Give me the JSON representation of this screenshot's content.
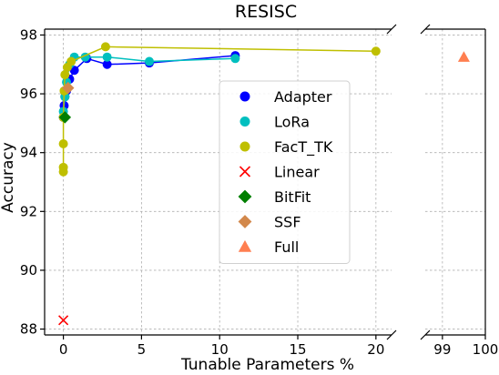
{
  "chart_data": {
    "type": "scatter",
    "title": "RESISC",
    "xlabel": "Tunable Parameters %",
    "ylabel": "Accuracy",
    "ylim": [
      87.8,
      98.2
    ],
    "yticks": [
      88,
      90,
      92,
      94,
      96,
      98
    ],
    "panels": [
      {
        "xlim": [
          -1.2,
          21
        ],
        "xticks": [
          0,
          5,
          10,
          15,
          20
        ]
      },
      {
        "xlim": [
          98.6,
          100
        ],
        "xticks": [
          99,
          100
        ]
      }
    ],
    "grid": true,
    "axis_break": true,
    "legend_position": "center-right",
    "series": [
      {
        "name": "Adapter",
        "marker": "circle",
        "color": "#0000ff",
        "line": true,
        "points": [
          [
            0.0,
            95.2
          ],
          [
            0.05,
            95.6
          ],
          [
            0.1,
            95.9
          ],
          [
            0.2,
            96.1
          ],
          [
            0.4,
            96.5
          ],
          [
            0.7,
            96.8
          ],
          [
            1.5,
            97.2
          ],
          [
            2.8,
            97.0
          ],
          [
            5.5,
            97.05
          ],
          [
            11.0,
            97.3
          ]
        ]
      },
      {
        "name": "LoRa",
        "marker": "circle",
        "color": "#00bfbf",
        "line": true,
        "points": [
          [
            0.0,
            95.4
          ],
          [
            0.1,
            95.9
          ],
          [
            0.2,
            96.4
          ],
          [
            0.4,
            97.0
          ],
          [
            0.7,
            97.25
          ],
          [
            1.4,
            97.25
          ],
          [
            2.8,
            97.25
          ],
          [
            5.5,
            97.1
          ],
          [
            11.0,
            97.2
          ]
        ]
      },
      {
        "name": "FacT_TK",
        "marker": "circle",
        "color": "#bfbf00",
        "line": true,
        "points": [
          [
            0.0,
            93.35
          ],
          [
            0.0,
            93.5
          ],
          [
            0.0,
            94.3
          ],
          [
            0.0,
            95.2
          ],
          [
            0.05,
            96.1
          ],
          [
            0.1,
            96.65
          ],
          [
            0.25,
            96.9
          ],
          [
            0.5,
            97.1
          ],
          [
            2.7,
            97.6
          ],
          [
            20.0,
            97.45
          ]
        ]
      },
      {
        "name": "Linear",
        "marker": "x",
        "color": "#ff0000",
        "line": false,
        "points": [
          [
            0.0,
            88.3
          ]
        ]
      },
      {
        "name": "BitFit",
        "marker": "diamond",
        "color": "#007f00",
        "line": false,
        "points": [
          [
            0.1,
            95.2
          ]
        ]
      },
      {
        "name": "SSF",
        "marker": "diamond",
        "color": "#d2884b",
        "line": false,
        "points": [
          [
            0.3,
            96.2
          ]
        ]
      },
      {
        "name": "Full",
        "marker": "triangle",
        "color": "#ff7f50",
        "line": false,
        "points": [
          [
            99.5,
            97.25
          ]
        ]
      }
    ]
  }
}
